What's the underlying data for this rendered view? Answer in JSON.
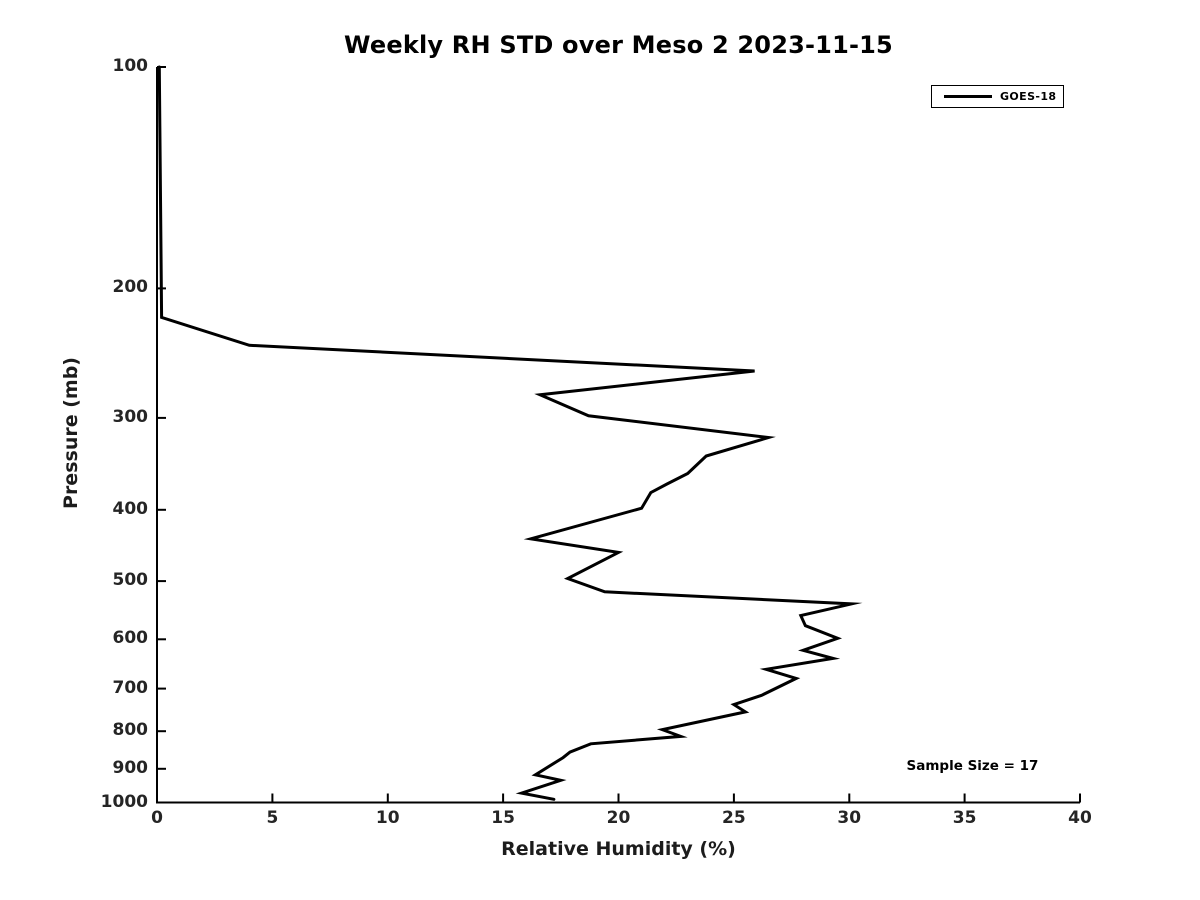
{
  "chart_data": {
    "type": "line",
    "title": "Weekly RH STD over Meso 2 2023-11-15",
    "xlabel": "Relative Humidity (%)",
    "ylabel": "Pressure (mb)",
    "x_axis": {
      "min": 0,
      "max": 40,
      "ticks": [
        0,
        5,
        10,
        15,
        20,
        25,
        30,
        35,
        40
      ]
    },
    "y_axis": {
      "min": 100,
      "max": 1000,
      "scale": "log",
      "inverted": true,
      "ticks": [
        100,
        200,
        300,
        400,
        500,
        600,
        700,
        800,
        900,
        1000
      ]
    },
    "grid": false,
    "legend_position": "top-right",
    "annotation": "Sample Size = 17",
    "series": [
      {
        "name": "GOES-18",
        "color": "#000000",
        "points_rh_pressure": [
          [
            0.1,
            100
          ],
          [
            0.2,
            219
          ],
          [
            4.0,
            239
          ],
          [
            25.9,
            259
          ],
          [
            16.6,
            279
          ],
          [
            18.7,
            298
          ],
          [
            26.5,
            319
          ],
          [
            23.8,
            338
          ],
          [
            23.0,
            357
          ],
          [
            22.1,
            369
          ],
          [
            21.4,
            379
          ],
          [
            21.0,
            398
          ],
          [
            16.2,
            438
          ],
          [
            20.0,
            457
          ],
          [
            17.8,
            496
          ],
          [
            19.4,
            517
          ],
          [
            30.1,
            537
          ],
          [
            27.9,
            557
          ],
          [
            28.1,
            575
          ],
          [
            29.5,
            598
          ],
          [
            28.0,
            621
          ],
          [
            29.3,
            637
          ],
          [
            26.4,
            659
          ],
          [
            27.7,
            678
          ],
          [
            26.2,
            715
          ],
          [
            25.0,
            736
          ],
          [
            25.5,
            753
          ],
          [
            21.9,
            796
          ],
          [
            22.7,
            813
          ],
          [
            18.8,
            832
          ],
          [
            17.9,
            854
          ],
          [
            17.6,
            869
          ],
          [
            16.4,
            917
          ],
          [
            17.5,
            933
          ],
          [
            15.8,
            971
          ],
          [
            17.2,
            990
          ]
        ]
      }
    ]
  },
  "colors": {
    "line": "#000000",
    "axis": "#000000",
    "tick_text": "#252525",
    "background": "#ffffff"
  }
}
